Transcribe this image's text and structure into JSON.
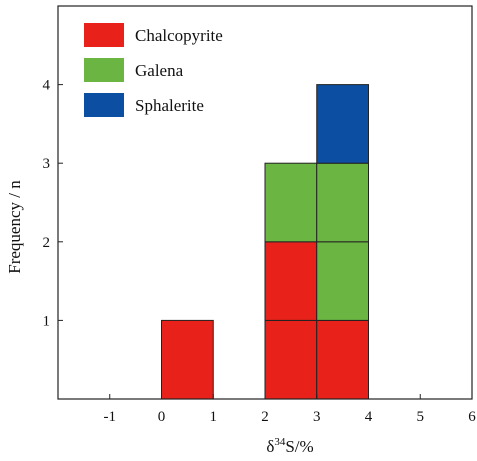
{
  "chart_data": {
    "type": "stacked-histogram",
    "xlabel_parts": {
      "delta": "δ",
      "sup": "34",
      "rest": "S/%"
    },
    "ylabel": "Frequency / n",
    "xlim": [
      -2,
      6
    ],
    "ylim": [
      0,
      5
    ],
    "x_ticks": [
      -1,
      0,
      1,
      2,
      3,
      4,
      5,
      6
    ],
    "y_ticks": [
      1,
      2,
      3,
      4
    ],
    "bins": [
      [
        0,
        1
      ],
      [
        2,
        3
      ],
      [
        3,
        4
      ]
    ],
    "series": [
      {
        "name": "Chalcopyrite",
        "color": "#e8221b",
        "counts": [
          1,
          2,
          1
        ]
      },
      {
        "name": "Galena",
        "color": "#6bb643",
        "counts": [
          0,
          1,
          2
        ]
      },
      {
        "name": "Sphalerite",
        "color": "#0b4ea2",
        "counts": [
          0,
          0,
          1
        ]
      }
    ],
    "legend_position": "top-left"
  }
}
